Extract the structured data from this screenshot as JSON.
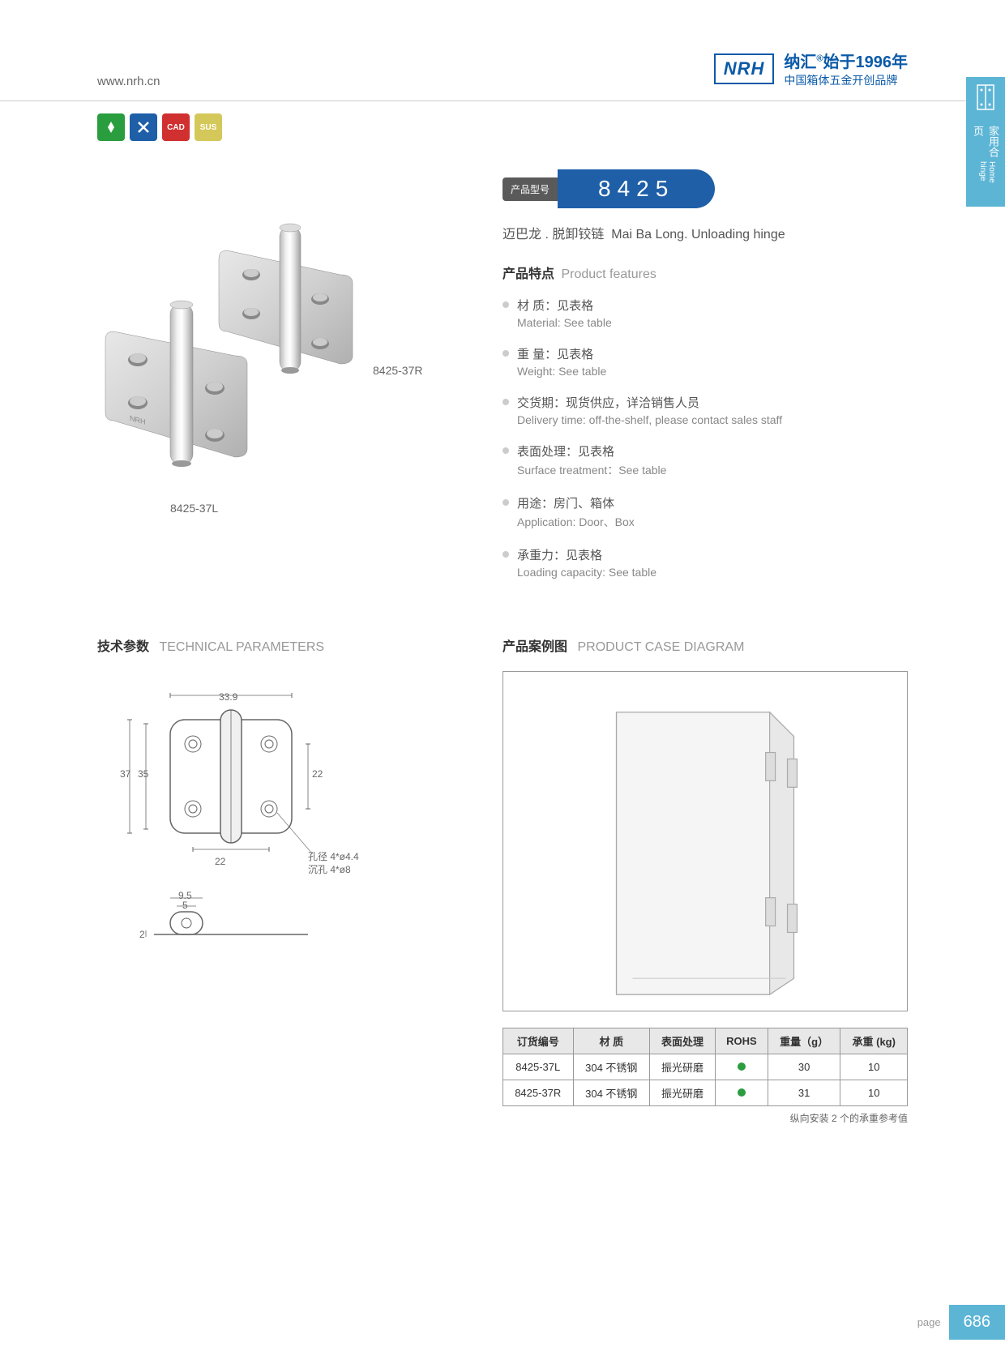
{
  "header": {
    "website": "www.nrh.cn",
    "logo_text": "NRH",
    "brand_cn": "纳汇",
    "brand_year": "始于1996年",
    "brand_tagline": "中国箱体五金开创品牌"
  },
  "sidebar": {
    "tab_cn": "家用合页",
    "tab_en": "Home hinge"
  },
  "icons": [
    {
      "bg": "#2a9d3f"
    },
    {
      "bg": "#1e5fa8"
    },
    {
      "bg": "#d03030"
    },
    {
      "bg": "#d4c85a"
    }
  ],
  "product": {
    "model_label": "产品型号",
    "model_number": "8425",
    "name_cn": "迈巴龙 . 脱卸铰链",
    "name_en": "Mai Ba Long. Unloading hinge",
    "label_left": "8425-37L",
    "label_right": "8425-37R"
  },
  "features": {
    "header_cn": "产品特点",
    "header_en": "Product features",
    "items": [
      {
        "cn": "材 质：见表格",
        "en": "Material: See table"
      },
      {
        "cn": "重 量：见表格",
        "en": "Weight: See table"
      },
      {
        "cn": "交货期：现货供应，详洽销售人员",
        "en": "Delivery time: off-the-shelf, please contact sales staff"
      },
      {
        "cn": "表面处理：见表格",
        "en": "Surface treatment：See table"
      },
      {
        "cn": "用途：房门、箱体",
        "en": "Application: Door、Box"
      },
      {
        "cn": "承重力：见表格",
        "en": "Loading capacity: See table"
      }
    ]
  },
  "tech": {
    "header_cn": "技术参数",
    "header_en": "TECHNICAL PARAMETERS",
    "dims": {
      "w": "33.9",
      "h1": "37",
      "h2": "35",
      "h3": "22",
      "w2": "22",
      "hole_label": "孔径 4*ø4.4",
      "sink_label": "沉孔 4*ø8",
      "top_w": "9.5",
      "top_w2": "5",
      "side_h": "2"
    }
  },
  "case": {
    "header_cn": "产品案例图",
    "header_en": "PRODUCT CASE DIAGRAM"
  },
  "table": {
    "headers": [
      "订货编号",
      "材 质",
      "表面处理",
      "ROHS",
      "重量（g）",
      "承重 (kg)"
    ],
    "rows": [
      [
        "8425-37L",
        "304 不锈钢",
        "振光研磨",
        "dot",
        "30",
        "10"
      ],
      [
        "8425-37R",
        "304 不锈钢",
        "振光研磨",
        "dot",
        "31",
        "10"
      ]
    ],
    "note": "纵向安装 2 个的承重参考值"
  },
  "footer": {
    "page_label": "page",
    "page_num": "686"
  }
}
